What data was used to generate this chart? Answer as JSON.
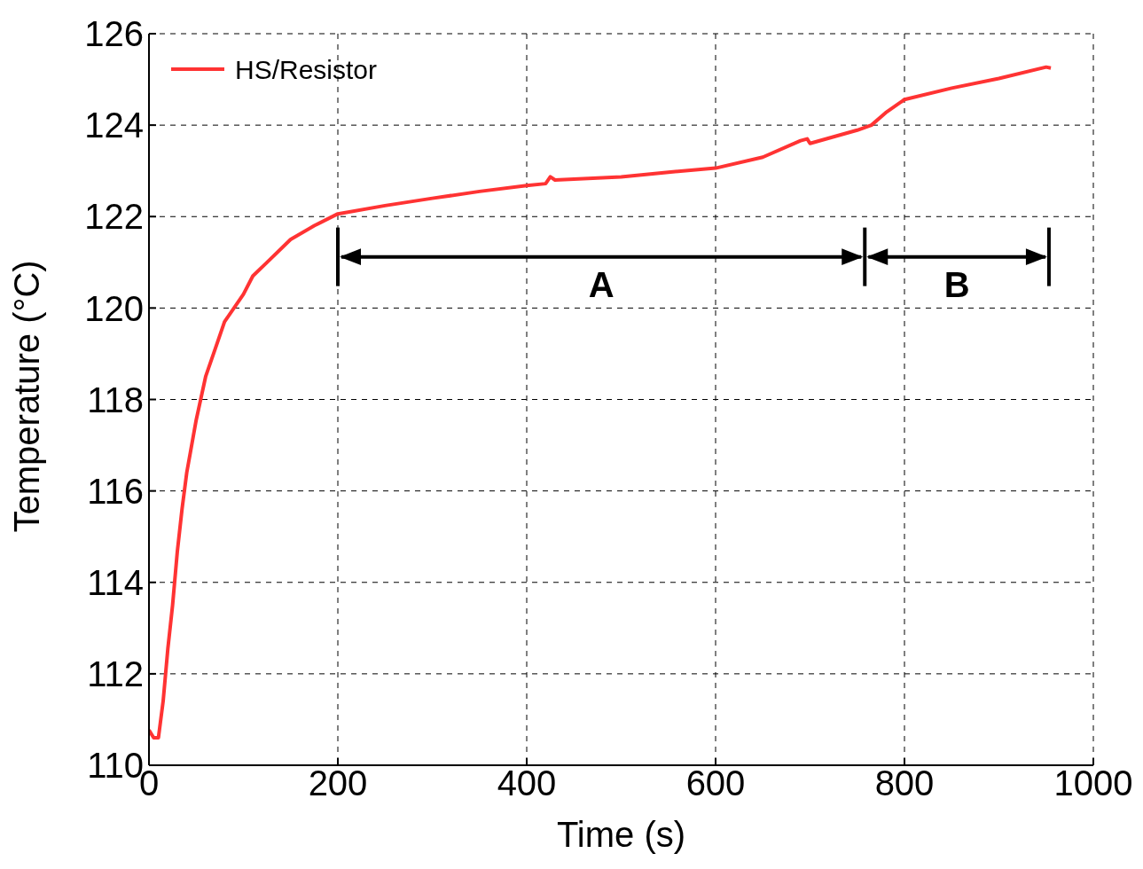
{
  "chart_data": {
    "type": "line",
    "xlabel": "Time (s)",
    "ylabel": "Temperature (°C)",
    "x": [
      0,
      5,
      10,
      15,
      20,
      25,
      30,
      35,
      40,
      50,
      60,
      70,
      80,
      100,
      110,
      125,
      150,
      175,
      200,
      250,
      300,
      350,
      400,
      420,
      425,
      430,
      500,
      550,
      600,
      650,
      690,
      697,
      700,
      750,
      765,
      780,
      800,
      850,
      900,
      950,
      955
    ],
    "series": [
      {
        "name": "HS/Resistor",
        "color": "#ff3333",
        "values": [
          110.77,
          110.6,
          110.6,
          111.4,
          112.55,
          113.5,
          114.67,
          115.6,
          116.4,
          117.55,
          118.5,
          119.1,
          119.7,
          120.3,
          120.7,
          121.0,
          121.5,
          121.8,
          122.06,
          122.24,
          122.4,
          122.55,
          122.68,
          122.72,
          122.87,
          122.8,
          122.87,
          122.97,
          123.06,
          123.3,
          123.66,
          123.7,
          123.6,
          123.89,
          124.0,
          124.27,
          124.56,
          124.81,
          125.02,
          125.27,
          125.25
        ]
      }
    ],
    "xlim": [
      0,
      1000
    ],
    "xticks": [
      0,
      200,
      400,
      600,
      800,
      1000
    ],
    "ylim": [
      110,
      126
    ],
    "yticks": [
      110,
      112,
      114,
      116,
      118,
      120,
      122,
      124,
      126
    ],
    "grid": true,
    "legend": "top left",
    "line_style": "solid",
    "marker": "none",
    "ref_lines": [
      {
        "axis": "x",
        "value": 200,
        "color": "#000000"
      },
      {
        "axis": "x",
        "value": 758,
        "color": "#000000"
      },
      {
        "axis": "x",
        "value": 953,
        "color": "#000000"
      }
    ],
    "annotations": [
      "A",
      "B"
    ]
  }
}
